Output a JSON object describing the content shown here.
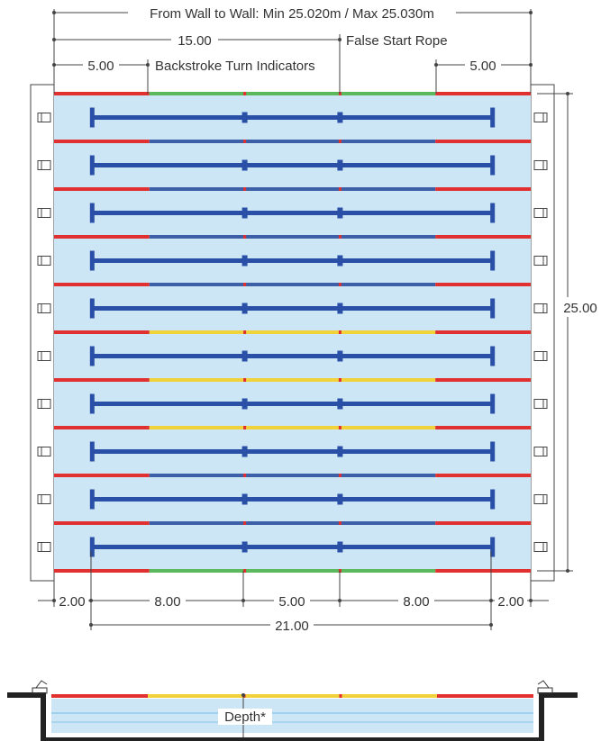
{
  "labels": {
    "wall_to_wall": "From Wall to Wall: Min 25.020m / Max 25.030m",
    "false_start_rope_distance": "15.00",
    "false_start_rope": "False Start Rope",
    "backstroke_left_distance": "5.00",
    "backstroke_turn_indicators": "Backstroke Turn Indicators",
    "backstroke_right_distance": "5.00",
    "pool_width": "25.00",
    "bottom_dims": [
      "2.00",
      "8.00",
      "5.00",
      "8.00",
      "2.00"
    ],
    "lane_line_length": "21.00",
    "depth": "Depth*"
  },
  "pool": {
    "lanes": 10,
    "lane_ropes": 11,
    "rope_sections_m": [
      5,
      10,
      15,
      20,
      25
    ],
    "rope_color_pattern": [
      "outer",
      "inner",
      "inner",
      "inner",
      "inner",
      "middle",
      "middle",
      "middle",
      "inner",
      "inner",
      "outer"
    ]
  },
  "colors": {
    "water": "#cce6f6",
    "rope_end": "#e03030",
    "outer_rope_center": "#5cb85c",
    "middle_rope_center": "#f2d23a",
    "inner_rope_center": "#3d5fa8",
    "lane_marking": "#2a4fa6",
    "wall": "#222222"
  }
}
